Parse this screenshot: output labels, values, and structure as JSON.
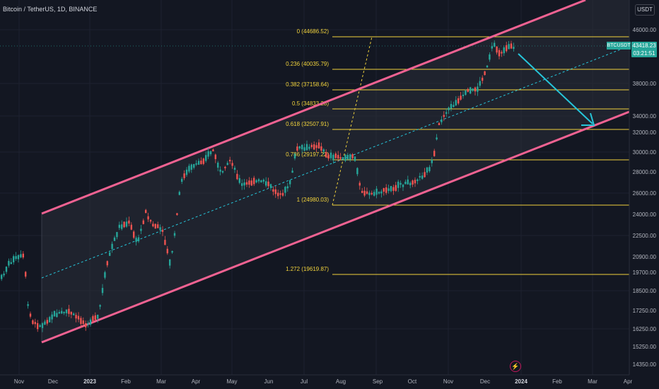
{
  "header": {
    "symbol": "Bitcoin / TetherUS, 1D, BINANCE"
  },
  "price_axis": {
    "unit_label": "USDT",
    "ticks": [
      "46000.00",
      "38000.00",
      "34000.00",
      "32000.00",
      "30000.00",
      "28000.00",
      "26000.00",
      "24000.00",
      "22500.00",
      "20900.00",
      "19700.00",
      "18500.00",
      "17250.00",
      "16250.00",
      "15250.00",
      "14350.00"
    ]
  },
  "time_axis": {
    "labels": [
      "Nov",
      "Dec",
      "2023",
      "Feb",
      "Mar",
      "Apr",
      "May",
      "Jun",
      "Jul",
      "Aug",
      "Sep",
      "Oct",
      "Nov",
      "Dec",
      "2024",
      "Feb",
      "Mar",
      "Apr"
    ]
  },
  "fibonacci": {
    "levels": [
      {
        "label": "0 (44686.52)"
      },
      {
        "label": "0.236 (40035.79)"
      },
      {
        "label": "0.382 (37158.64)"
      },
      {
        "label": "0.5 (34833.28)"
      },
      {
        "label": "0.618 (32507.91)"
      },
      {
        "label": "0.786 (29197.22)"
      },
      {
        "label": "1 (24980.03)"
      },
      {
        "label": "1.272 (19619.87)"
      }
    ],
    "color": "#f0d23c"
  },
  "last_price": {
    "ticker": "BTCUSDT",
    "value": "43418.23",
    "countdown": "03:21:51",
    "color": "#26a69a"
  },
  "colors": {
    "background": "#131722",
    "up": "#26a69a",
    "down": "#ef5350",
    "channel": "#f06292",
    "midline": "#26c6da",
    "arrow": "#26c6da",
    "grid": "#1e2230"
  },
  "icons": {
    "bottom": "lightning-icon"
  }
}
